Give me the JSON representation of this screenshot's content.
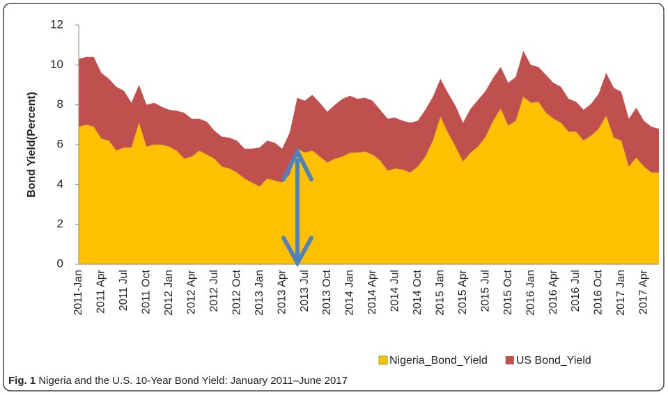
{
  "chart_data": {
    "type": "stacked_area",
    "y_label": "Bond Yield(Percent)",
    "caption_label": "Fig. 1",
    "caption": "Nigeria and the U.S. 10-Year Bond Yield: January 2011–June 2017",
    "categories": [
      "2011-Jan",
      null,
      null,
      "2011 Apr",
      null,
      null,
      "2011 Jul",
      null,
      null,
      "2011 Oct",
      null,
      null,
      "2012 Jan",
      null,
      null,
      "2012 Apr",
      null,
      null,
      "2012 Jul",
      null,
      null,
      "2012 Oct",
      null,
      null,
      "2013 Jan",
      null,
      null,
      "2013 Apr",
      null,
      null,
      "2013 Jul",
      null,
      null,
      "2013 Oct",
      null,
      null,
      "2014 Jan",
      null,
      null,
      "2014 Apr",
      null,
      null,
      "2014 Jul",
      null,
      null,
      "2014 Oct",
      null,
      null,
      "2015 Jan",
      null,
      null,
      "2015 Apr",
      null,
      null,
      "2015 Jul",
      null,
      null,
      "2015 Oct",
      null,
      null,
      "2016 Jan",
      null,
      null,
      "2016 Apr",
      null,
      null,
      "2016 Jul",
      null,
      null,
      "2016 Oct",
      null,
      null,
      "2017 Jan",
      null,
      null,
      "2017 Apr",
      null,
      null
    ],
    "series": [
      {
        "name": "Nigeria_Bond_Yield",
        "color": "#ffc000",
        "values": [
          6.9,
          7.0,
          6.9,
          6.3,
          6.2,
          5.7,
          5.85,
          5.85,
          7.1,
          5.9,
          6.0,
          6.0,
          5.9,
          5.7,
          5.3,
          5.4,
          5.7,
          5.5,
          5.3,
          4.9,
          4.8,
          4.6,
          4.3,
          4.1,
          3.9,
          4.3,
          4.2,
          4.1,
          4.5,
          5.8,
          5.6,
          5.7,
          5.4,
          5.1,
          5.3,
          5.4,
          5.6,
          5.6,
          5.65,
          5.5,
          5.2,
          4.7,
          4.8,
          4.75,
          4.6,
          4.9,
          5.4,
          6.2,
          7.4,
          6.6,
          5.9,
          5.15,
          5.6,
          5.9,
          6.4,
          7.2,
          7.8,
          6.95,
          7.2,
          8.4,
          8.1,
          8.15,
          7.6,
          7.3,
          7.1,
          6.65,
          6.65,
          6.2,
          6.45,
          6.8,
          7.45,
          6.35,
          6.2,
          4.9,
          5.35,
          4.9,
          4.6,
          4.6
        ]
      },
      {
        "name": "US Bond_Yield",
        "color": "#c0504d",
        "values": [
          3.4,
          3.4,
          3.5,
          3.3,
          3.1,
          3.2,
          2.85,
          2.25,
          1.9,
          2.1,
          2.1,
          1.9,
          1.85,
          2.0,
          2.3,
          1.9,
          1.6,
          1.65,
          1.4,
          1.5,
          1.55,
          1.6,
          1.5,
          1.7,
          1.95,
          1.9,
          1.9,
          1.7,
          2.1,
          2.55,
          2.6,
          2.8,
          2.7,
          2.55,
          2.7,
          2.9,
          2.85,
          2.7,
          2.7,
          2.7,
          2.55,
          2.6,
          2.55,
          2.45,
          2.5,
          2.3,
          2.35,
          2.2,
          1.9,
          2.0,
          2.05,
          1.95,
          2.2,
          2.35,
          2.3,
          2.15,
          2.1,
          2.15,
          2.2,
          2.3,
          1.9,
          1.75,
          1.9,
          1.8,
          1.8,
          1.65,
          1.5,
          1.55,
          1.6,
          1.75,
          2.15,
          2.5,
          2.45,
          2.4,
          2.5,
          2.3,
          2.3,
          2.2
        ]
      }
    ],
    "ylim": [
      0,
      12
    ],
    "yticks": [
      0,
      2,
      4,
      6,
      8,
      10,
      12
    ],
    "grid": false
  }
}
